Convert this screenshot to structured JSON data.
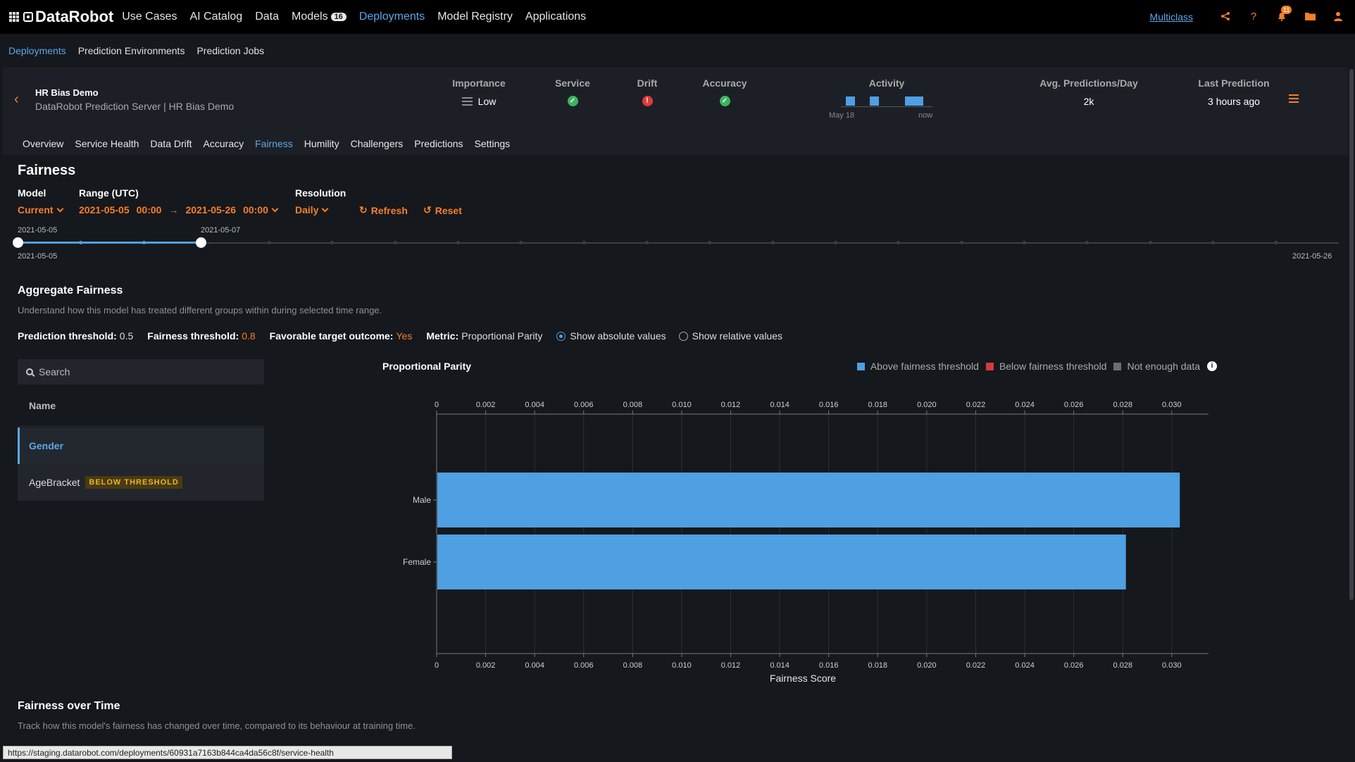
{
  "topnav": {
    "logo": "DataRobot",
    "items": [
      {
        "label": "Use Cases"
      },
      {
        "label": "AI Catalog"
      },
      {
        "label": "Data"
      },
      {
        "label": "Models",
        "badge": "16"
      },
      {
        "label": "Deployments",
        "active": true
      },
      {
        "label": "Model Registry"
      },
      {
        "label": "Applications"
      }
    ],
    "right_link": "Multiclass",
    "notification_count": "11"
  },
  "subnav": {
    "items": [
      "Deployments",
      "Prediction Environments",
      "Prediction Jobs"
    ]
  },
  "deployment": {
    "title": "HR Bias Demo",
    "subtitle": "DataRobot Prediction Server | HR Bias Demo",
    "stats": {
      "importance_label": "Importance",
      "importance_value": "Low",
      "service_label": "Service",
      "drift_label": "Drift",
      "accuracy_label": "Accuracy",
      "activity_label": "Activity",
      "activity_start": "May 18",
      "activity_end": "now",
      "avg_label": "Avg. Predictions/Day",
      "avg_value": "2k",
      "last_label": "Last Prediction",
      "last_value": "3 hours ago"
    },
    "tabs": [
      "Overview",
      "Service Health",
      "Data Drift",
      "Accuracy",
      "Fairness",
      "Humility",
      "Challengers",
      "Predictions",
      "Settings"
    ],
    "active_tab": "Fairness"
  },
  "fairness": {
    "title": "Fairness",
    "model_label": "Model",
    "model_value": "Current",
    "range_label": "Range (UTC)",
    "range_start_date": "2021-05-05",
    "range_start_time": "00:00",
    "range_end_date": "2021-05-26",
    "range_end_time": "00:00",
    "resolution_label": "Resolution",
    "resolution_value": "Daily",
    "refresh_label": "Refresh",
    "reset_label": "Reset",
    "slider_top_left": "2021-05-05",
    "slider_top_handle": "2021-05-07",
    "slider_bottom_left": "2021-05-05",
    "slider_bottom_right": "2021-05-26"
  },
  "aggregate": {
    "title": "Aggregate Fairness",
    "description": "Understand how this model has treated different groups within during selected time range.",
    "prediction_threshold_label": "Prediction threshold:",
    "prediction_threshold_value": "0.5",
    "fairness_threshold_label": "Fairness threshold:",
    "fairness_threshold_value": "0.8",
    "favorable_label": "Favorable target outcome:",
    "favorable_value": "Yes",
    "metric_label": "Metric:",
    "metric_value": "Proportional Parity",
    "radio_absolute": "Show absolute values",
    "radio_relative": "Show relative values",
    "search_placeholder": "Search",
    "list_header": "Name",
    "features": [
      {
        "name": "Gender",
        "selected": true
      },
      {
        "name": "AgeBracket",
        "badge": "BELOW THRESHOLD"
      }
    ]
  },
  "legend": {
    "above": "Above fairness threshold",
    "below": "Below fairness threshold",
    "not_enough": "Not enough data",
    "colors": {
      "above": "#4f9fe3",
      "below": "#d33b3b",
      "not_enough": "#6a6d72"
    }
  },
  "chart_data": {
    "type": "bar",
    "orientation": "horizontal",
    "title": "Proportional Parity",
    "xlabel": "Fairness Score",
    "categories": [
      "Male",
      "Female"
    ],
    "values": [
      0.0303,
      0.0281
    ],
    "xlim": [
      0,
      0.0315
    ],
    "xticks": [
      "0",
      "0.002",
      "0.004",
      "0.006",
      "0.008",
      "0.010",
      "0.012",
      "0.014",
      "0.016",
      "0.018",
      "0.020",
      "0.022",
      "0.024",
      "0.026",
      "0.028",
      "0.030"
    ],
    "color": "#4f9fe3"
  },
  "over_time": {
    "title": "Fairness over Time",
    "description": "Track how this model's fairness has changed over time, compared to its behaviour at training time."
  },
  "status_url": "https://staging.datarobot.com/deployments/60931a7163b844ca4da56c8f/service-health"
}
